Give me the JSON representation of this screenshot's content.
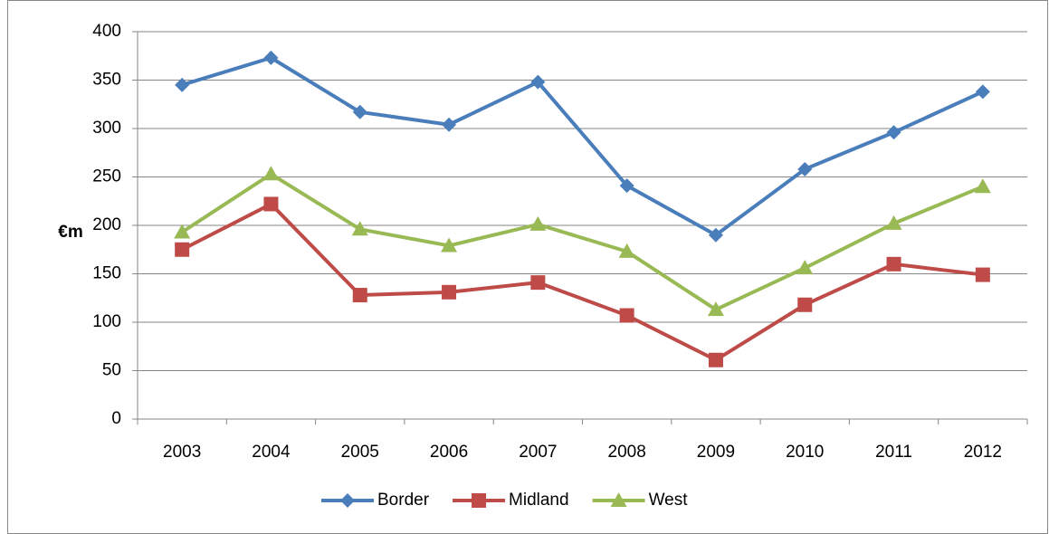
{
  "chart_data": {
    "type": "line",
    "y_label": "€m",
    "categories": [
      "2003",
      "2004",
      "2005",
      "2006",
      "2007",
      "2008",
      "2009",
      "2010",
      "2011",
      "2012"
    ],
    "series": [
      {
        "name": "Border",
        "color": "#4a7ebb",
        "marker": "diamond",
        "values": [
          345,
          373,
          317,
          304,
          348,
          241,
          190,
          258,
          296,
          338
        ]
      },
      {
        "name": "Midland",
        "color": "#be4b48",
        "marker": "square",
        "values": [
          175,
          222,
          128,
          131,
          141,
          107,
          61,
          118,
          160,
          149
        ]
      },
      {
        "name": "West",
        "color": "#98b954",
        "marker": "triangle",
        "values": [
          193,
          253,
          196,
          179,
          201,
          173,
          113,
          156,
          202,
          240
        ]
      }
    ],
    "ylim": [
      0,
      400
    ],
    "yticks": [
      0,
      50,
      100,
      150,
      200,
      250,
      300,
      350,
      400
    ],
    "grid": true,
    "legend": "bottom"
  }
}
